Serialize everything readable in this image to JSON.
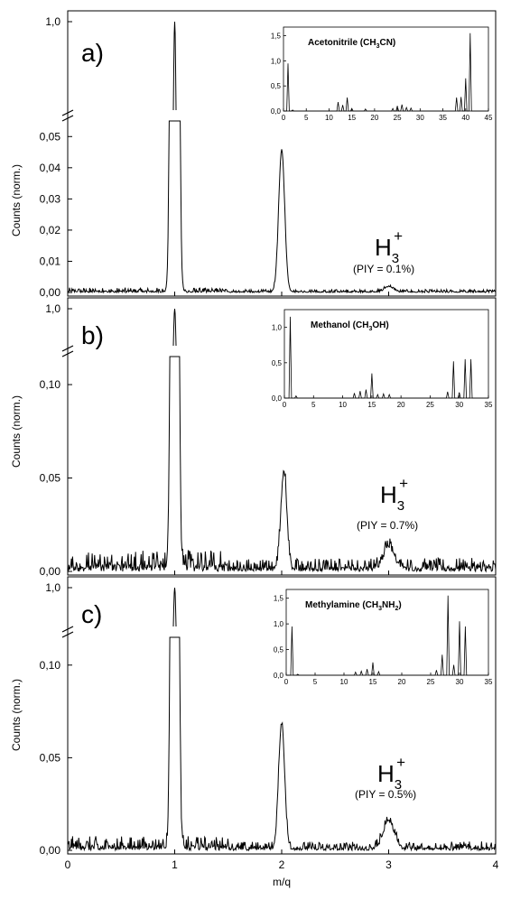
{
  "chart_data": {
    "type": "line",
    "xlabel": "m/q",
    "ylabel": "Counts (norm.)",
    "xlim": [
      0,
      4
    ],
    "x_ticks": [
      "0",
      "1",
      "2",
      "3",
      "4"
    ],
    "grid": false,
    "panels": [
      {
        "label": "a)",
        "ion_label": "H",
        "ion_sub": "3",
        "ion_sup": "+",
        "piy_text": "(PIY = 0.1%)",
        "lower_ylim": [
          0,
          0.055
        ],
        "lower_ticks": [
          "0,00",
          "0,01",
          "0,02",
          "0,03",
          "0,04",
          "0,05"
        ],
        "upper_tick": "1,0",
        "noise": 0.0008,
        "peaks": [
          {
            "x": 1.0,
            "height": 1.0,
            "width": 0.022
          },
          {
            "x": 2.0,
            "height": 0.0455,
            "width": 0.028
          },
          {
            "x": 3.0,
            "height": 0.0018,
            "width": 0.04
          }
        ],
        "inset": {
          "title": "Acetonitrile (CH",
          "title_sub": "3",
          "title_rest": "CN)",
          "xlim": [
            0,
            45
          ],
          "ylim": [
            0,
            1.6
          ],
          "x_ticks": [
            "0",
            "5",
            "10",
            "15",
            "20",
            "25",
            "30",
            "35",
            "40",
            "45"
          ],
          "y_ticks": [
            "0,0",
            "0,5",
            "1,0",
            "1,5"
          ],
          "peaks": [
            {
              "x": 1,
              "y": 0.95
            },
            {
              "x": 2,
              "y": 0.02
            },
            {
              "x": 12,
              "y": 0.18
            },
            {
              "x": 13,
              "y": 0.12
            },
            {
              "x": 14,
              "y": 0.27
            },
            {
              "x": 15,
              "y": 0.05
            },
            {
              "x": 18,
              "y": 0.04
            },
            {
              "x": 24,
              "y": 0.05
            },
            {
              "x": 25,
              "y": 0.1
            },
            {
              "x": 26,
              "y": 0.13
            },
            {
              "x": 27,
              "y": 0.07
            },
            {
              "x": 28,
              "y": 0.06
            },
            {
              "x": 38,
              "y": 0.27
            },
            {
              "x": 39,
              "y": 0.28
            },
            {
              "x": 40,
              "y": 0.65
            },
            {
              "x": 41,
              "y": 1.55
            }
          ]
        }
      },
      {
        "label": "b)",
        "ion_label": "H",
        "ion_sub": "3",
        "ion_sup": "+",
        "piy_text": "(PIY = 0.7%)",
        "lower_ylim": [
          0,
          0.115
        ],
        "lower_ticks": [
          "0,00",
          "0,05",
          "0,10"
        ],
        "upper_tick": "1,0",
        "noise": 0.006,
        "peaks": [
          {
            "x": 1.0,
            "height": 1.0,
            "width": 0.022
          },
          {
            "x": 2.02,
            "height": 0.052,
            "width": 0.028
          },
          {
            "x": 3.0,
            "height": 0.012,
            "width": 0.05
          }
        ],
        "inset": {
          "title": "Methanol (CH",
          "title_sub": "3",
          "title_rest": "OH)",
          "xlim": [
            0,
            35
          ],
          "ylim": [
            0,
            1.2
          ],
          "x_ticks": [
            "0",
            "5",
            "10",
            "15",
            "20",
            "25",
            "30",
            "35"
          ],
          "y_ticks": [
            "0,0",
            "0,5",
            "1,0"
          ],
          "peaks": [
            {
              "x": 1,
              "y": 1.15
            },
            {
              "x": 2,
              "y": 0.03
            },
            {
              "x": 12,
              "y": 0.07
            },
            {
              "x": 13,
              "y": 0.1
            },
            {
              "x": 14,
              "y": 0.12
            },
            {
              "x": 15,
              "y": 0.35
            },
            {
              "x": 16,
              "y": 0.05
            },
            {
              "x": 17,
              "y": 0.06
            },
            {
              "x": 18,
              "y": 0.05
            },
            {
              "x": 28,
              "y": 0.09
            },
            {
              "x": 29,
              "y": 0.52
            },
            {
              "x": 30,
              "y": 0.08
            },
            {
              "x": 31,
              "y": 0.55
            },
            {
              "x": 32,
              "y": 0.55
            }
          ]
        }
      },
      {
        "label": "c)",
        "ion_label": "H",
        "ion_sub": "3",
        "ion_sup": "+",
        "piy_text": "(PIY = 0.5%)",
        "lower_ylim": [
          0,
          0.115
        ],
        "lower_ticks": [
          "0,00",
          "0,05",
          "0,10"
        ],
        "upper_tick": "1,0",
        "noise": 0.004,
        "peaks": [
          {
            "x": 1.0,
            "height": 1.0,
            "width": 0.022
          },
          {
            "x": 2.0,
            "height": 0.068,
            "width": 0.028
          },
          {
            "x": 3.0,
            "height": 0.015,
            "width": 0.05
          }
        ],
        "inset": {
          "title": "Methylamine (CH",
          "title_sub": "3",
          "title_rest": "NH",
          "title_sub2": "2",
          "title_end": ")",
          "xlim": [
            0,
            35
          ],
          "ylim": [
            0,
            1.6
          ],
          "x_ticks": [
            "0",
            "5",
            "10",
            "15",
            "20",
            "25",
            "30",
            "35"
          ],
          "y_ticks": [
            "0,0",
            "0,5",
            "1,0",
            "1,5"
          ],
          "peaks": [
            {
              "x": 1,
              "y": 0.95
            },
            {
              "x": 2,
              "y": 0.02
            },
            {
              "x": 12,
              "y": 0.06
            },
            {
              "x": 13,
              "y": 0.08
            },
            {
              "x": 14,
              "y": 0.12
            },
            {
              "x": 15,
              "y": 0.25
            },
            {
              "x": 16,
              "y": 0.07
            },
            {
              "x": 26,
              "y": 0.1
            },
            {
              "x": 27,
              "y": 0.4
            },
            {
              "x": 28,
              "y": 1.55
            },
            {
              "x": 29,
              "y": 0.2
            },
            {
              "x": 30,
              "y": 1.05
            },
            {
              "x": 31,
              "y": 0.95
            }
          ]
        }
      }
    ]
  }
}
